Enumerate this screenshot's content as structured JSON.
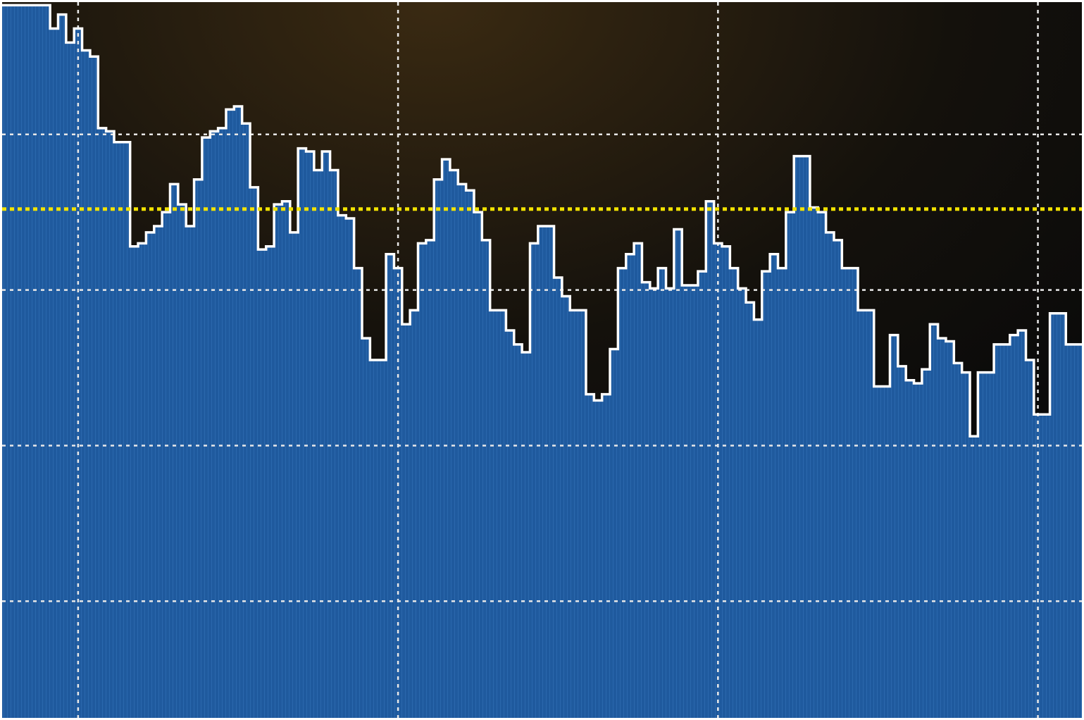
{
  "chart_data": {
    "type": "step-area",
    "values": [
      4.83,
      4.83,
      4.83,
      4.83,
      4.83,
      4.83,
      4.68,
      4.77,
      4.59,
      4.68,
      4.54,
      4.5,
      4.04,
      4.02,
      3.95,
      3.95,
      3.28,
      3.3,
      3.37,
      3.41,
      3.5,
      3.68,
      3.55,
      3.41,
      3.71,
      3.98,
      4.02,
      4.04,
      4.16,
      4.18,
      4.07,
      3.66,
      3.26,
      3.28,
      3.55,
      3.57,
      3.37,
      3.91,
      3.89,
      3.77,
      3.89,
      3.77,
      3.48,
      3.46,
      3.14,
      2.69,
      2.55,
      2.55,
      3.23,
      3.14,
      2.78,
      2.87,
      3.3,
      3.32,
      3.71,
      3.84,
      3.77,
      3.68,
      3.64,
      3.5,
      3.32,
      2.87,
      2.87,
      2.74,
      2.65,
      2.6,
      3.3,
      3.41,
      3.41,
      3.08,
      2.96,
      2.87,
      2.87,
      2.33,
      2.29,
      2.33,
      2.62,
      3.14,
      3.23,
      3.3,
      3.05,
      3.01,
      3.14,
      3.01,
      3.39,
      3.03,
      3.03,
      3.12,
      3.57,
      3.3,
      3.28,
      3.14,
      3.01,
      2.92,
      2.81,
      3.12,
      3.23,
      3.14,
      3.5,
      3.86,
      3.86,
      3.53,
      3.5,
      3.37,
      3.32,
      3.14,
      3.14,
      2.87,
      2.87,
      2.38,
      2.38,
      2.71,
      2.51,
      2.42,
      2.4,
      2.49,
      2.78,
      2.69,
      2.67,
      2.53,
      2.47,
      2.06,
      2.47,
      2.47,
      2.65,
      2.65,
      2.71,
      2.74,
      2.55,
      2.2,
      2.2,
      2.85,
      2.85,
      2.65,
      2.65
    ],
    "line_color": "#ffffff",
    "fill_color": "#1f5a9e",
    "xlim": [
      0.5,
      135.5
    ],
    "ylim": [
      0.25,
      4.85
    ],
    "xgrid": [
      10,
      50,
      90,
      130
    ],
    "ygrid": [
      1,
      2,
      3,
      4
    ],
    "reference_line": {
      "value": 3.52,
      "color": "#f2e200"
    }
  }
}
